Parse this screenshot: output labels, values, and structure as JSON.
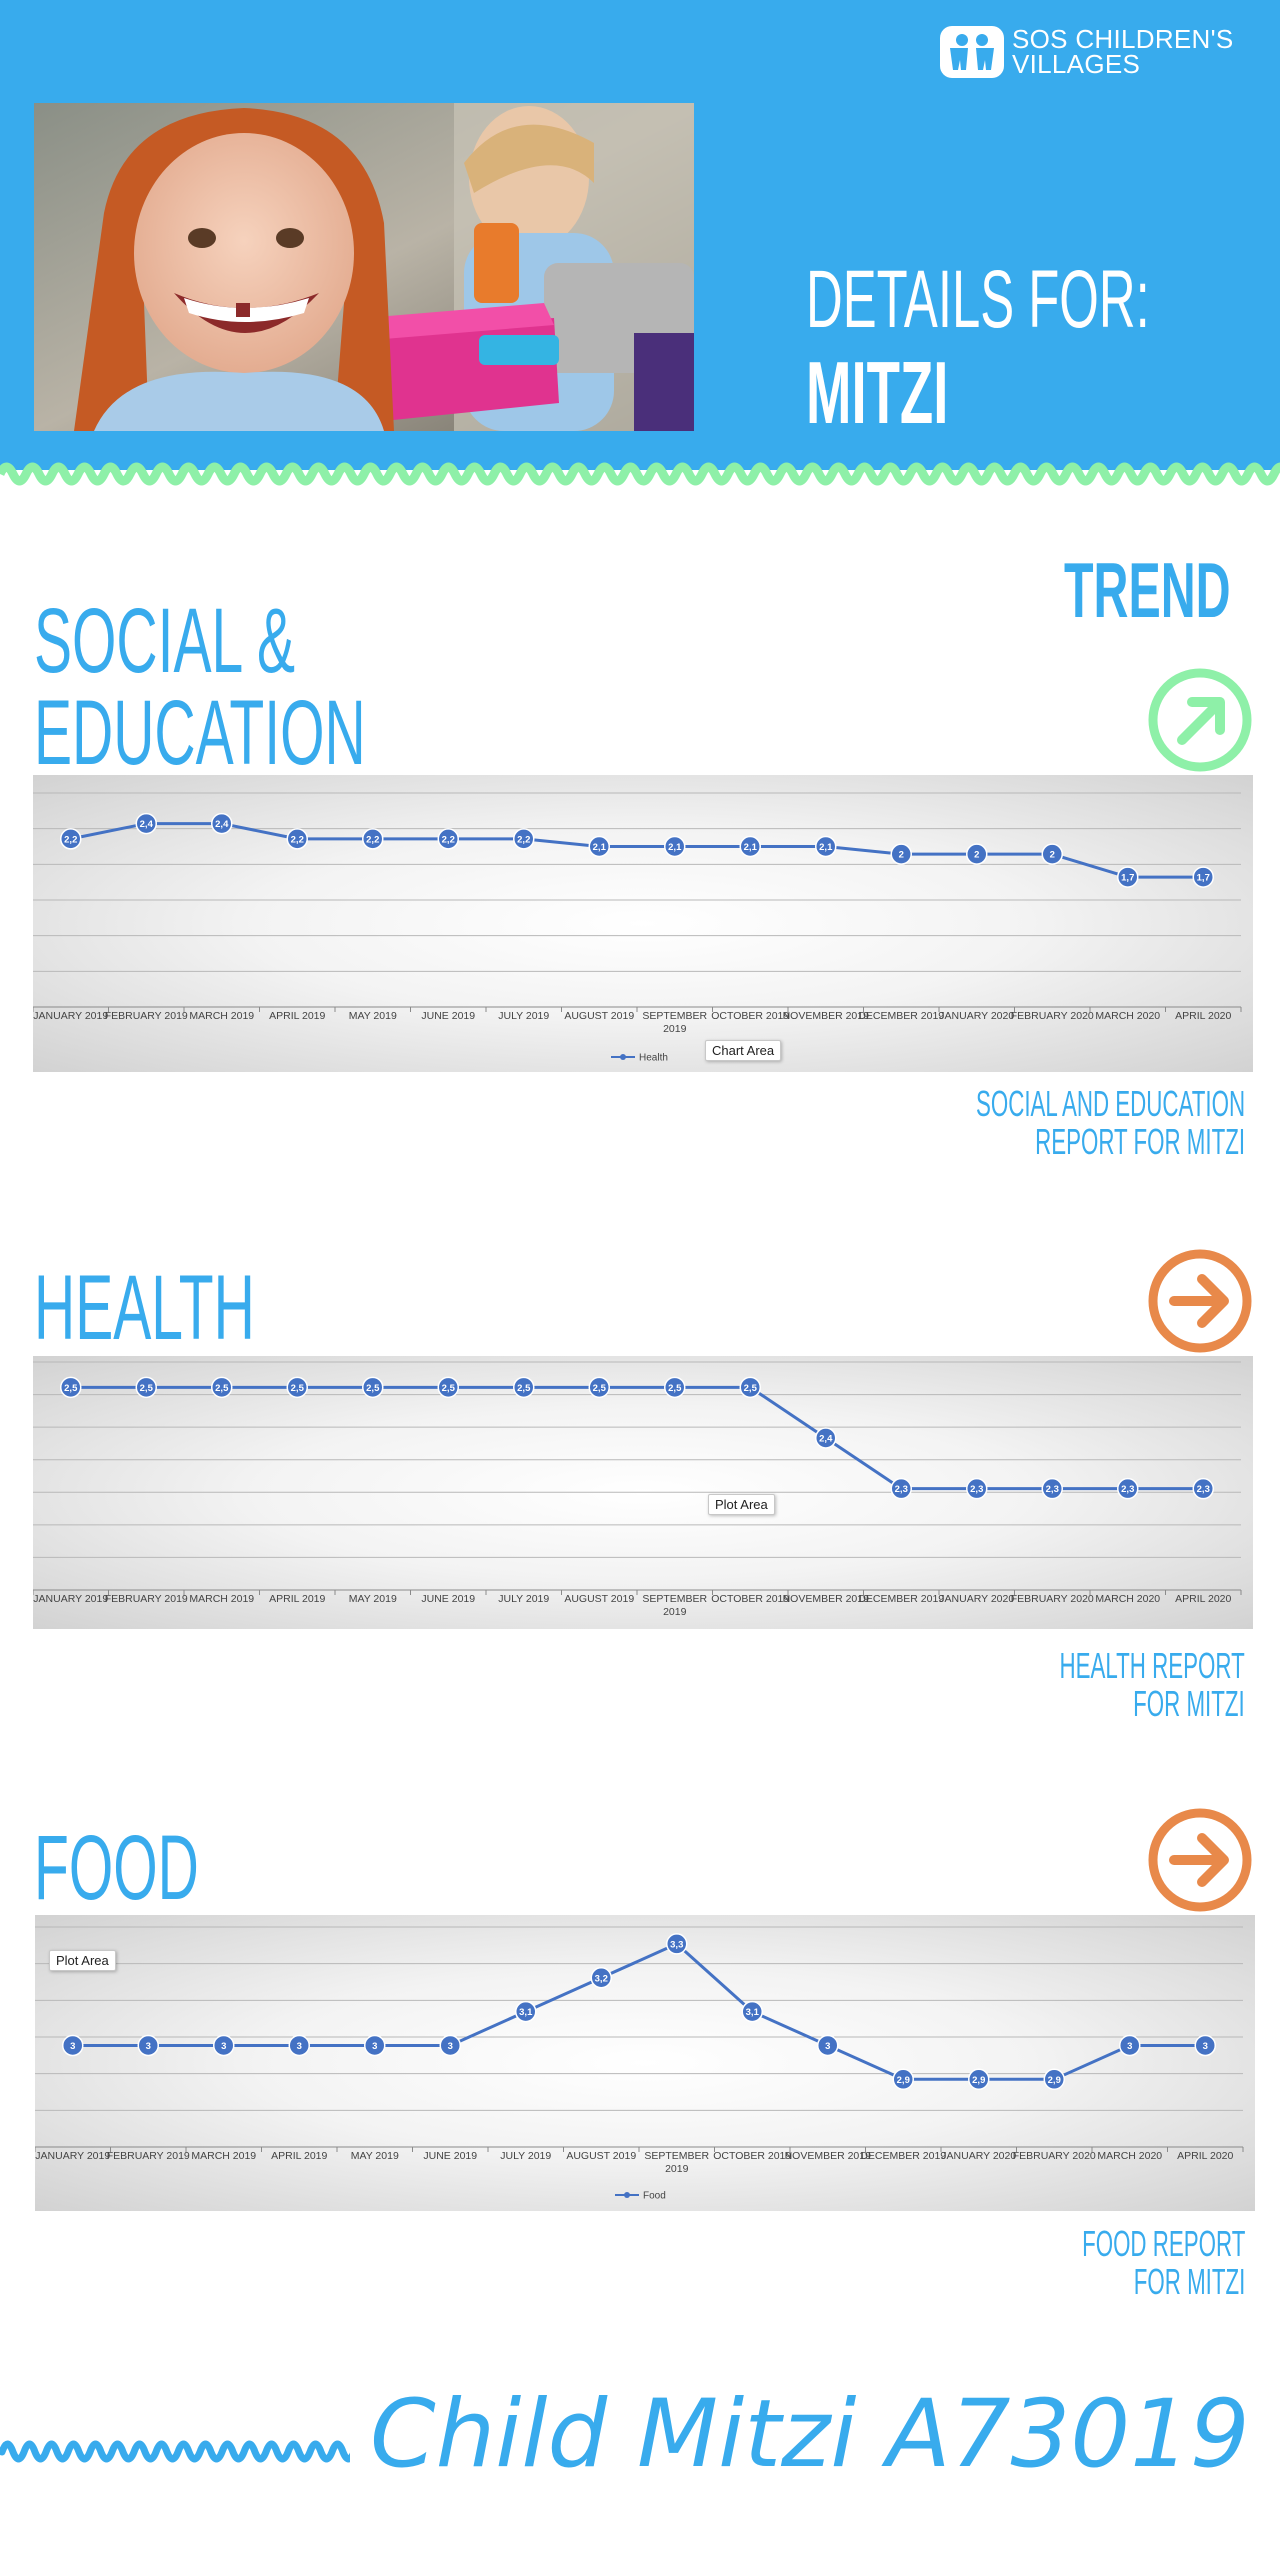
{
  "brand": {
    "name_line1": "SOS CHILDREN'S",
    "name_line2": "VILLAGES",
    "color": "#38abed",
    "accent_green": "#8ef0a8",
    "accent_orange": "#e8894a"
  },
  "header": {
    "details_label": "DETAILS FOR:",
    "child_name": "MITZI"
  },
  "trend_heading": "TREND",
  "sections": {
    "social": {
      "title_line1": "SOCIAL &",
      "title_line2": "EDUCATION",
      "trend_icon": "arrow-up-right-icon",
      "report_line1": "SOCIAL AND EDUCATION",
      "report_line2": "REPORT FOR MITZI",
      "tooltip": "Chart Area"
    },
    "health": {
      "title": "HEALTH",
      "trend_icon": "arrow-right-icon",
      "report_line1": "HEALTH REPORT",
      "report_line2": "FOR MITZI",
      "tooltip": "Plot Area"
    },
    "food": {
      "title": "FOOD",
      "trend_icon": "arrow-right-icon",
      "report_line1": "FOOD REPORT",
      "report_line2": "FOR MITZI",
      "tooltip": "Plot Area"
    }
  },
  "footer": {
    "title": "Child Mitzi A73019"
  },
  "chart_data": [
    {
      "type": "line",
      "categories": [
        "JANUARY 2019",
        "FEBRUARY 2019",
        "MARCH 2019",
        "APRIL 2019",
        "MAY 2019",
        "JUNE 2019",
        "JULY 2019",
        "AUGUST 2019",
        "SEPTEMBER 2019",
        "OCTOBER 2019",
        "NOVEMBER 2019",
        "DECEMBER 2019",
        "JANUARY 2020",
        "FEBRUARY 2020",
        "MARCH 2020",
        "APRIL 2020"
      ],
      "series": [
        {
          "name": "Health",
          "values": [
            2.2,
            2.4,
            2.4,
            2.2,
            2.2,
            2.2,
            2.2,
            2.1,
            2.1,
            2.1,
            2.1,
            2,
            2,
            2,
            1.7,
            1.7
          ]
        }
      ],
      "labels": [
        "2,2",
        "2,4",
        "2,4",
        "2,2",
        "2,2",
        "2,2",
        "2,2",
        "2,1",
        "2,1",
        "2,1",
        "2,1",
        "2",
        "2",
        "2",
        "1,7",
        "1,7"
      ],
      "ylim": [
        0,
        2.8
      ],
      "grid": true,
      "legend": "bottom",
      "line_color": "#4472c4"
    },
    {
      "type": "line",
      "categories": [
        "JANUARY 2019",
        "FEBRUARY 2019",
        "MARCH 2019",
        "APRIL 2019",
        "MAY 2019",
        "JUNE 2019",
        "JULY 2019",
        "AUGUST 2019",
        "SEPTEMBER 2019",
        "OCTOBER 2019",
        "NOVEMBER 2019",
        "DECEMBER 2019",
        "JANUARY 2020",
        "FEBRUARY 2020",
        "MARCH 2020",
        "APRIL 2020"
      ],
      "series": [
        {
          "values": [
            2.5,
            2.5,
            2.5,
            2.5,
            2.5,
            2.5,
            2.5,
            2.5,
            2.5,
            2.5,
            2.4,
            2.3,
            2.3,
            2.3,
            2.3,
            2.3
          ]
        }
      ],
      "labels": [
        "2,5",
        "2,5",
        "2,5",
        "2,5",
        "2,5",
        "2,5",
        "2,5",
        "2,5",
        "2,5",
        "2,5",
        "2,4",
        "2,3",
        "2,3",
        "2,3",
        "2,3",
        "2,3"
      ],
      "ylim": [
        2.1,
        2.55
      ],
      "grid": true,
      "legend": "none",
      "line_color": "#4472c4"
    },
    {
      "type": "line",
      "categories": [
        "JANUARY 2019",
        "FEBRUARY 2019",
        "MARCH 2019",
        "APRIL 2019",
        "MAY 2019",
        "JUNE 2019",
        "JULY 2019",
        "AUGUST 2019",
        "SEPTEMBER 2019",
        "OCTOBER 2019",
        "NOVEMBER 2019",
        "DECEMBER 2019",
        "JANUARY 2020",
        "FEBRUARY 2020",
        "MARCH 2020",
        "APRIL 2020"
      ],
      "series": [
        {
          "name": "Food",
          "values": [
            3,
            3,
            3,
            3,
            3,
            3,
            3.1,
            3.2,
            3.3,
            3.1,
            3,
            2.9,
            2.9,
            2.9,
            3,
            3
          ]
        }
      ],
      "labels": [
        "3",
        "3",
        "3",
        "3",
        "3",
        "3",
        "3,1",
        "3,2",
        "3,3",
        "3,1",
        "3",
        "2,9",
        "2,9",
        "2,9",
        "3",
        "3"
      ],
      "ylim": [
        2.7,
        3.35
      ],
      "grid": true,
      "legend": "bottom",
      "line_color": "#4472c4"
    }
  ]
}
